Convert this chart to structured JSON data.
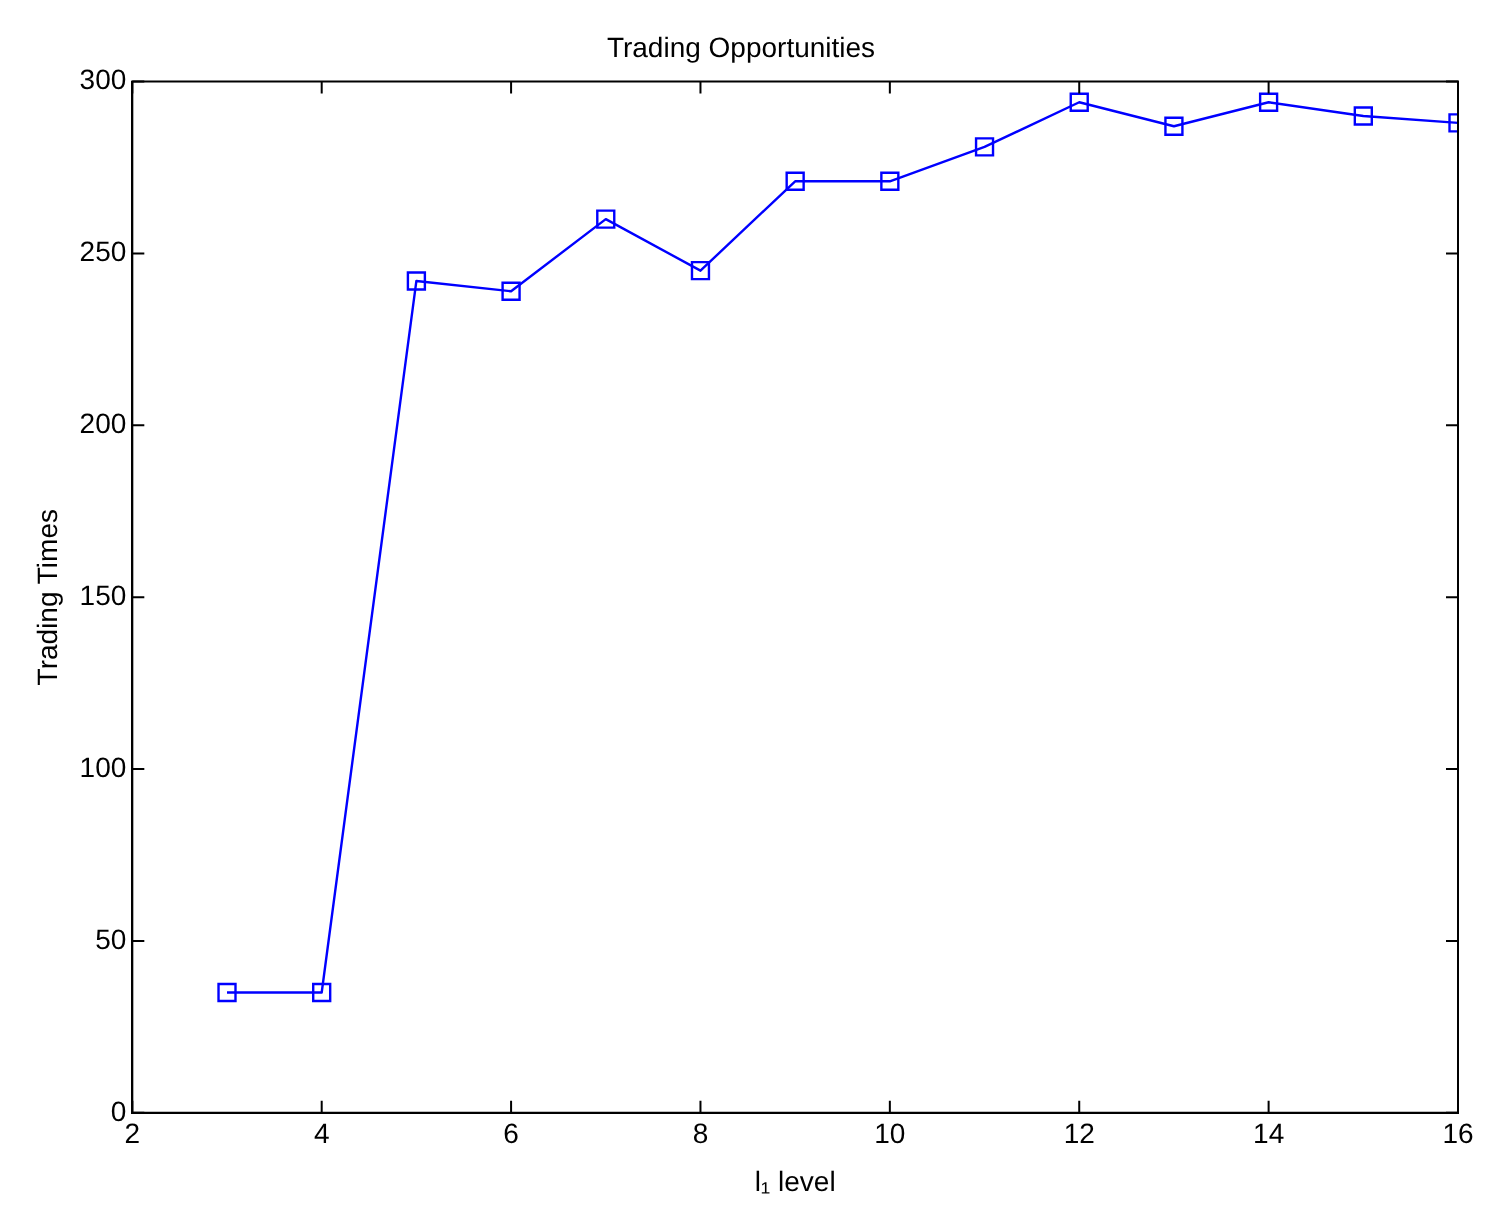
{
  "chart_data": {
    "type": "line",
    "title": "Trading Opportunities",
    "xlabel": "l₁ level",
    "ylabel": "Trading Times",
    "x": [
      3,
      4,
      5,
      6,
      7,
      8,
      9,
      10,
      11,
      12,
      13,
      14,
      15,
      16
    ],
    "series": [
      {
        "color": "#0000ff",
        "values": [
          35,
          35,
          242,
          239,
          260,
          245,
          271,
          271,
          281,
          294,
          287,
          294,
          290,
          288
        ]
      }
    ],
    "xlim": [
      2,
      16
    ],
    "xticks": [
      2,
      4,
      6,
      8,
      10,
      12,
      14,
      16
    ],
    "ylim": [
      0,
      300
    ],
    "yticks": [
      0,
      50,
      100,
      150,
      200,
      250,
      300
    ],
    "grid": false,
    "legend": false,
    "marker": "square",
    "line_style": "solid"
  }
}
